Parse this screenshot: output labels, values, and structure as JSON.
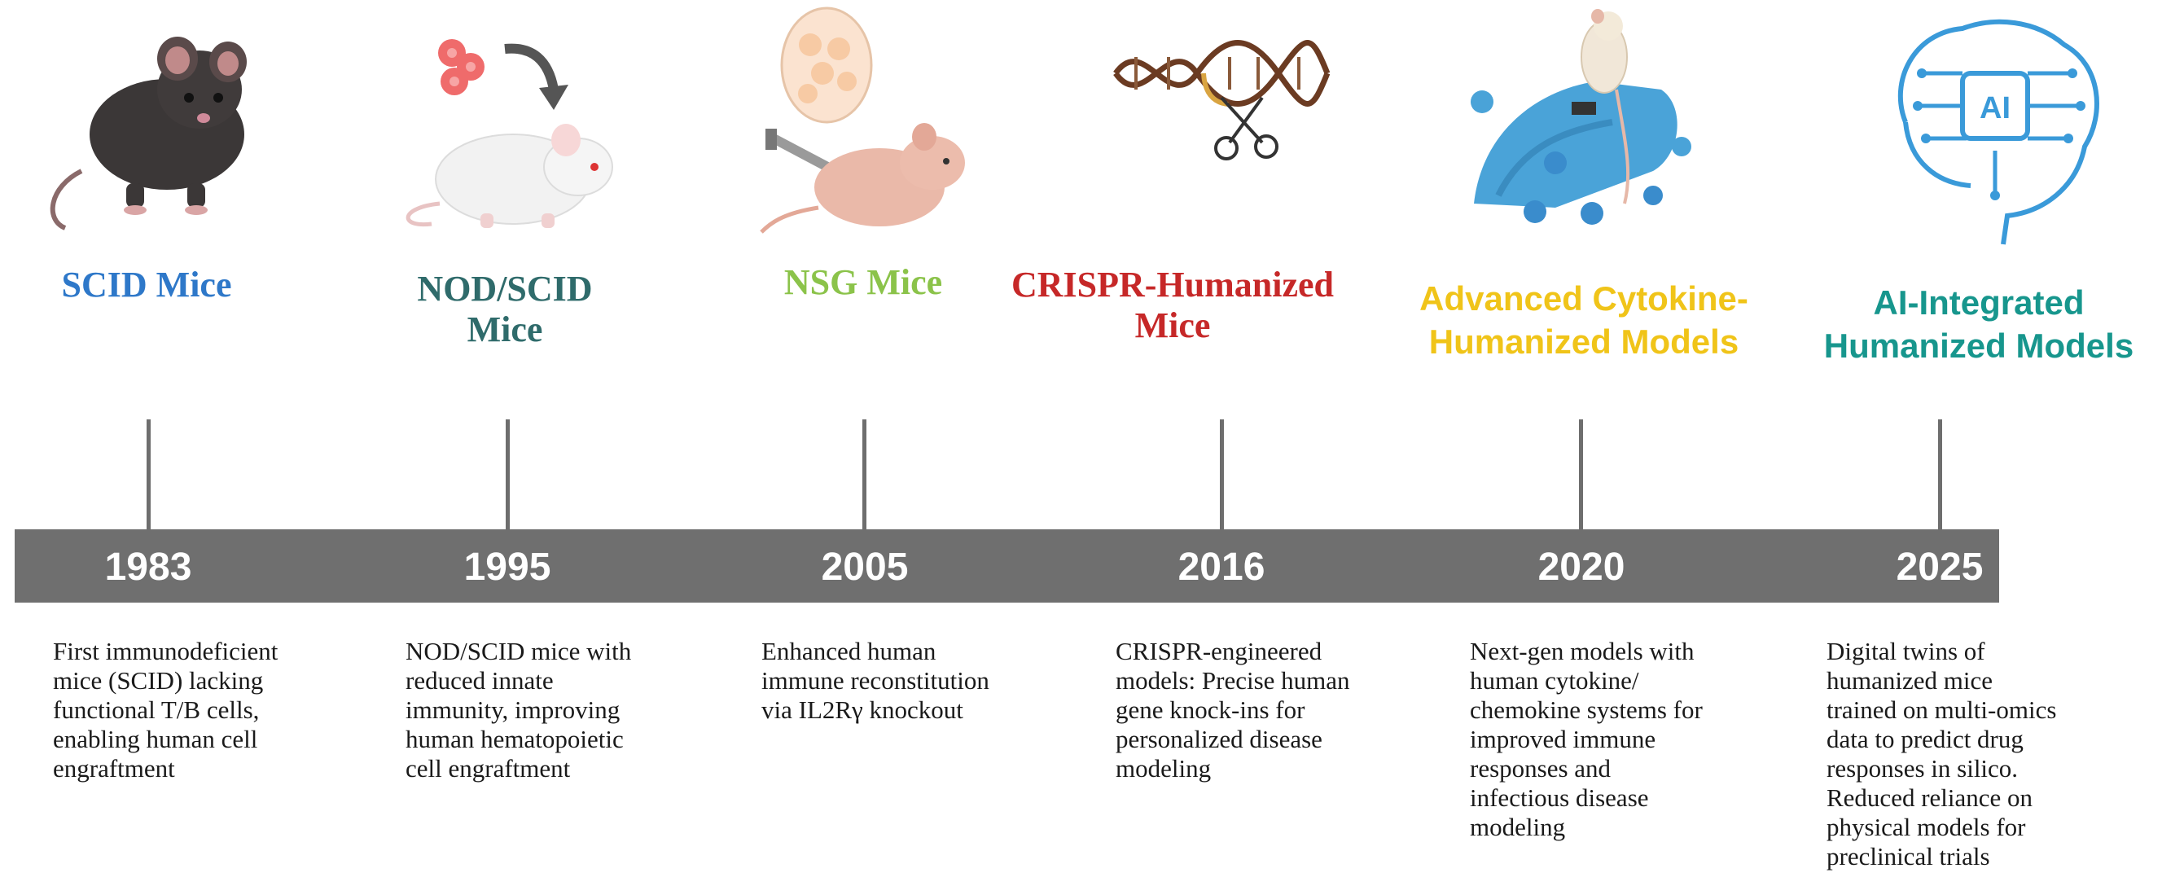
{
  "colors": {
    "bar": "#6f6f6f",
    "tick": "#6e6e6e",
    "milestone1": "#2e78c9",
    "milestone2": "#2f6b6b",
    "milestone3": "#8bc34a",
    "milestone4": "#c62828",
    "milestone5": "#f0c419",
    "milestone6": "#17968d"
  },
  "milestones": [
    {
      "year": "1983",
      "illustration": "black-mouse-icon",
      "title_lines": [
        "SCID Mice"
      ],
      "description_lines": [
        "First immunodeficient",
        "mice (SCID) lacking",
        "functional T/B cells,",
        "enabling human cell",
        "engraftment"
      ]
    },
    {
      "year": "1995",
      "illustration": "white-mouse-with-cells-icon",
      "title_lines": [
        "NOD/SCID",
        "Mice"
      ],
      "description_lines": [
        "NOD/SCID mice with",
        "reduced innate",
        "immunity, improving",
        "human hematopoietic",
        "cell engraftment"
      ]
    },
    {
      "year": "2005",
      "illustration": "nude-mouse-injection-icon",
      "title_lines": [
        "NSG Mice"
      ],
      "description_lines": [
        "Enhanced human",
        "immune reconstitution",
        "via IL2Rγ knockout"
      ]
    },
    {
      "year": "2016",
      "illustration": "dna-scissors-icon",
      "title_lines": [
        "CRISPR-Humanized",
        "Mice"
      ],
      "description_lines": [
        "CRISPR-engineered",
        "models: Precise human",
        "gene knock-ins for",
        "personalized disease",
        "modeling"
      ]
    },
    {
      "year": "2020",
      "illustration": "gloved-hand-mouse-icon",
      "title_lines": [
        "Advanced Cytokine-",
        "Humanized Models"
      ],
      "description_lines": [
        "Next-gen models with",
        "human cytokine/",
        "chemokine systems for",
        "improved immune",
        "responses and",
        "infectious disease",
        "modeling"
      ]
    },
    {
      "year": "2025",
      "illustration": "ai-brain-circuit-icon",
      "title_lines": [
        "AI-Integrated",
        "Humanized Models"
      ],
      "description_lines": [
        "Digital twins of",
        "humanized mice",
        "trained on multi-omics",
        "data to predict drug",
        "responses in silico.",
        "Reduced reliance on",
        "physical models for",
        "preclinical trials"
      ]
    }
  ],
  "ai_chip_label": "AI"
}
